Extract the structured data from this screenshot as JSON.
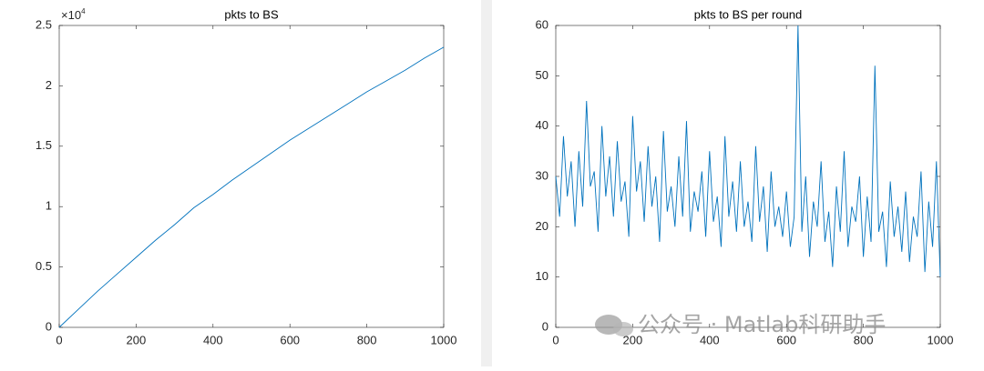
{
  "chart_data": [
    {
      "type": "line",
      "title": "pkts to BS",
      "color": "#0072bd",
      "x": [
        0,
        50,
        100,
        150,
        200,
        250,
        300,
        350,
        400,
        450,
        500,
        550,
        600,
        650,
        700,
        750,
        800,
        850,
        900,
        950,
        1000
      ],
      "values": [
        0,
        1500,
        3000,
        4400,
        5800,
        7200,
        8500,
        9900,
        11000,
        12200,
        13300,
        14400,
        15500,
        16500,
        17500,
        18500,
        19500,
        20400,
        21300,
        22300,
        23200
      ],
      "xlim": [
        0,
        1000
      ],
      "xticks": [
        0,
        200,
        400,
        600,
        800,
        1000
      ],
      "ylim": [
        0,
        25000
      ],
      "yticks": [
        0,
        {
          "value": 5000,
          "label": "0.5"
        },
        {
          "value": 10000,
          "label": "1"
        },
        {
          "value": 15000,
          "label": "1.5"
        },
        {
          "value": 20000,
          "label": "2"
        },
        {
          "value": 25000,
          "label": "2.5"
        }
      ],
      "y_multiplier": {
        "base": "×10",
        "exponent": "4"
      }
    },
    {
      "type": "line",
      "title": "pkts to BS per round",
      "color": "#0072bd",
      "x": [
        0,
        10,
        20,
        30,
        40,
        50,
        60,
        70,
        80,
        90,
        100,
        110,
        120,
        130,
        140,
        150,
        160,
        170,
        180,
        190,
        200,
        210,
        220,
        230,
        240,
        250,
        260,
        270,
        280,
        290,
        300,
        310,
        320,
        330,
        340,
        350,
        360,
        370,
        380,
        390,
        400,
        410,
        420,
        430,
        440,
        450,
        460,
        470,
        480,
        490,
        500,
        510,
        520,
        530,
        540,
        550,
        560,
        570,
        580,
        590,
        600,
        610,
        620,
        630,
        640,
        650,
        660,
        670,
        680,
        690,
        700,
        710,
        720,
        730,
        740,
        750,
        760,
        770,
        780,
        790,
        800,
        810,
        820,
        830,
        840,
        850,
        860,
        870,
        880,
        890,
        900,
        910,
        920,
        930,
        940,
        950,
        960,
        970,
        980,
        990,
        1000
      ],
      "values": [
        30,
        22,
        38,
        26,
        33,
        20,
        35,
        24,
        45,
        28,
        31,
        19,
        40,
        26,
        34,
        22,
        37,
        25,
        29,
        18,
        42,
        27,
        33,
        21,
        36,
        24,
        30,
        17,
        39,
        23,
        28,
        20,
        34,
        22,
        41,
        19,
        27,
        23,
        31,
        18,
        35,
        21,
        26,
        16,
        38,
        22,
        29,
        19,
        33,
        20,
        25,
        17,
        36,
        21,
        28,
        15,
        31,
        20,
        24,
        18,
        27,
        16,
        22,
        60,
        19,
        30,
        14,
        25,
        20,
        33,
        17,
        23,
        12,
        28,
        19,
        35,
        16,
        24,
        21,
        30,
        14,
        26,
        17,
        52,
        19,
        23,
        12,
        29,
        18,
        24,
        15,
        27,
        13,
        22,
        18,
        31,
        11,
        25,
        16,
        33,
        10
      ],
      "xlim": [
        0,
        1000
      ],
      "xticks": [
        0,
        200,
        400,
        600,
        800,
        1000
      ],
      "ylim": [
        0,
        60
      ],
      "yticks": [
        0,
        10,
        20,
        30,
        40,
        50,
        60
      ]
    }
  ],
  "watermark": "公众号 · Matlab科研助手"
}
